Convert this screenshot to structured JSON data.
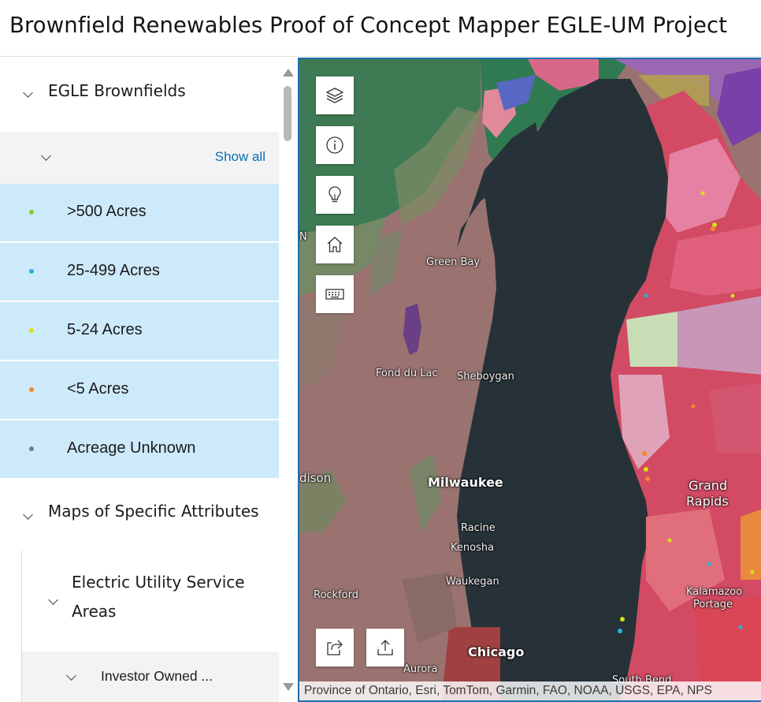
{
  "header": {
    "title": "Brownfield Renewables Proof of Concept Mapper EGLE-UM Project"
  },
  "sidebar": {
    "layer_egle": {
      "label": "EGLE Brownfields"
    },
    "legend": {
      "show_all": "Show all",
      "items": [
        {
          "label": ">500 Acres",
          "color": "#7bd41c"
        },
        {
          "label": "25-499 Acres",
          "color": "#23b4d8"
        },
        {
          "label": "5-24 Acres",
          "color": "#d8e017"
        },
        {
          "label": "<5 Acres",
          "color": "#f08a24"
        },
        {
          "label": "Acreage Unknown",
          "color": "#7a7a7a"
        }
      ]
    },
    "layer_maps": {
      "label": "Maps of Specific Attributes"
    },
    "layer_electric": {
      "label_line1": "Electric Utility Service",
      "label_line2": "Areas"
    },
    "layer_investor": {
      "label": "Investor Owned ..."
    }
  },
  "map": {
    "tools": [
      {
        "name": "layers-icon"
      },
      {
        "name": "info-icon"
      },
      {
        "name": "lightbulb-icon"
      },
      {
        "name": "home-icon"
      },
      {
        "name": "keyboard-icon"
      }
    ],
    "bottom_tools": [
      {
        "name": "share-icon"
      },
      {
        "name": "export-icon"
      }
    ],
    "places": {
      "green_bay": "Green Bay",
      "fond_du_lac": "Fond du Lac",
      "sheboygan": "Sheboygan",
      "madison": "dison",
      "milwaukee": "Milwaukee",
      "racine": "Racine",
      "kenosha": "Kenosha",
      "waukegan": "Waukegan",
      "rockford": "Rockford",
      "chicago": "Chicago",
      "aurora": "Aurora",
      "grand_rapids_1": "Grand",
      "grand_rapids_2": "Rapids",
      "kalamazoo": "Kalamazoo",
      "portage": "Portage",
      "south_bend": "South Bend",
      "edge_n": "N"
    },
    "attribution": "Province of Ontario, Esri, TomTom, Garmin, FAO, NOAA, USGS, EPA, NPS"
  }
}
